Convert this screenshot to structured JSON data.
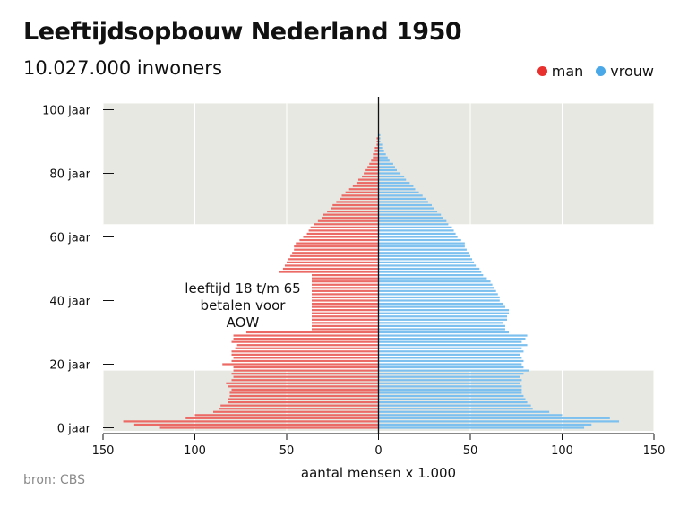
{
  "title": "Leeftijdsopbouw Nederland 1950",
  "subtitle": "10.027.000 inwoners",
  "source": "bron: CBS",
  "legend": [
    {
      "label": "man",
      "color": "#e8312f"
    },
    {
      "label": "vrouw",
      "color": "#4aa8e8"
    }
  ],
  "annotation": [
    "leeftijd 18 t/m 65",
    "betalen voor",
    "AOW"
  ],
  "colors": {
    "man_bar": "#ec6a66",
    "vrouw_bar": "#7cc0ef",
    "shade": "#e8e8e3",
    "axis": "#111111"
  },
  "chart_data": {
    "type": "bar",
    "orientation": "horizontal",
    "xlabel": "aantal mensen x 1.000",
    "xlim": [
      -150,
      150
    ],
    "x_ticks": [
      -150,
      -100,
      -50,
      0,
      50,
      100,
      150
    ],
    "x_tick_labels": [
      "150",
      "100",
      "50",
      "0",
      "50",
      "100",
      "150"
    ],
    "ylim": [
      0,
      100
    ],
    "y_ticks": [
      0,
      20,
      40,
      60,
      80,
      100
    ],
    "y_tick_labels": [
      "0 jaar",
      "20 jaar",
      "40 jaar",
      "60 jaar",
      "80 jaar",
      "100 jaar"
    ],
    "shaded_age_ranges": [
      [
        0,
        18
      ],
      [
        65,
        102
      ]
    ],
    "categories": [
      0,
      1,
      2,
      3,
      4,
      5,
      6,
      7,
      8,
      9,
      10,
      11,
      12,
      13,
      14,
      15,
      16,
      17,
      18,
      19,
      20,
      21,
      22,
      23,
      24,
      25,
      26,
      27,
      28,
      29,
      30,
      31,
      32,
      33,
      34,
      35,
      36,
      37,
      38,
      39,
      40,
      41,
      42,
      43,
      44,
      45,
      46,
      47,
      48,
      49,
      50,
      51,
      52,
      53,
      54,
      55,
      56,
      57,
      58,
      59,
      60,
      61,
      62,
      63,
      64,
      65,
      66,
      67,
      68,
      69,
      70,
      71,
      72,
      73,
      74,
      75,
      76,
      77,
      78,
      79,
      80,
      81,
      82,
      83,
      84,
      85,
      86,
      87,
      88,
      89,
      90,
      91,
      92,
      93,
      94,
      95
    ],
    "series": [
      {
        "name": "man",
        "values": [
          119,
          133,
          139,
          105,
          100,
          90,
          87,
          86,
          82,
          82,
          81,
          81,
          80,
          82,
          83,
          80,
          79,
          80,
          79,
          79,
          85,
          80,
          79,
          80,
          80,
          78,
          77,
          80,
          79,
          79,
          72,
          70,
          69,
          68,
          69,
          67,
          67,
          67,
          65,
          64,
          63,
          62,
          61,
          62,
          60,
          58,
          57,
          55,
          53,
          54,
          52,
          51,
          50,
          49,
          48,
          47,
          46,
          46,
          45,
          43,
          41,
          39,
          38,
          37,
          35,
          33,
          31,
          30,
          28,
          26,
          25,
          23,
          21,
          20,
          18,
          16,
          14,
          12,
          11,
          9,
          8,
          7,
          6,
          5,
          4,
          3,
          3,
          2,
          2,
          1,
          1,
          1,
          0,
          0,
          0,
          0
        ]
      },
      {
        "name": "vrouw",
        "values": [
          112,
          116,
          131,
          126,
          100,
          93,
          84,
          83,
          81,
          80,
          79,
          78,
          78,
          78,
          77,
          78,
          77,
          79,
          82,
          79,
          78,
          79,
          78,
          77,
          79,
          78,
          81,
          78,
          80,
          81,
          71,
          69,
          69,
          68,
          70,
          70,
          71,
          71,
          69,
          68,
          66,
          66,
          65,
          64,
          63,
          62,
          61,
          59,
          57,
          56,
          55,
          53,
          52,
          51,
          50,
          49,
          48,
          47,
          47,
          45,
          43,
          42,
          41,
          40,
          38,
          37,
          35,
          34,
          32,
          30,
          29,
          27,
          26,
          24,
          22,
          20,
          19,
          17,
          15,
          14,
          12,
          10,
          9,
          8,
          6,
          5,
          4,
          3,
          2,
          2,
          1,
          1,
          1,
          0,
          0,
          0
        ]
      }
    ]
  }
}
